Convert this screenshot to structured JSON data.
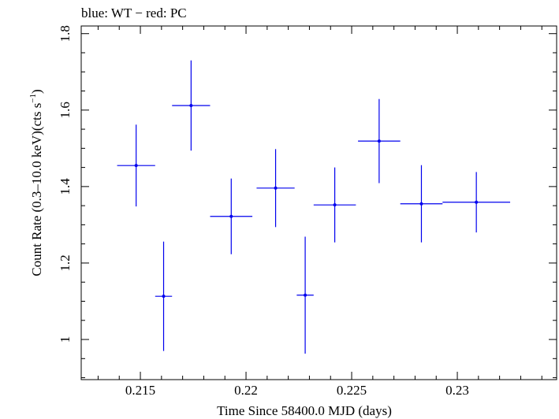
{
  "chart_data": {
    "type": "scatter",
    "title": "blue: WT − red: PC",
    "xlabel": "Time Since 58400.0 MJD (days)",
    "ylabel_main": "Count Rate (0.3–10.0 keV)(cts s",
    "ylabel_sup": "−1",
    "ylabel_close": ")",
    "xlim": [
      0.2122,
      0.2347
    ],
    "ylim": [
      0.895,
      1.82
    ],
    "xticks": [
      {
        "value": 0.215,
        "label": "0.215"
      },
      {
        "value": 0.22,
        "label": "0.22"
      },
      {
        "value": 0.225,
        "label": "0.225"
      },
      {
        "value": 0.23,
        "label": "0.23"
      }
    ],
    "yticks": [
      {
        "value": 1.0,
        "label": "1"
      },
      {
        "value": 1.2,
        "label": "1.2"
      },
      {
        "value": 1.4,
        "label": "1.4"
      },
      {
        "value": 1.6,
        "label": "1.6"
      },
      {
        "value": 1.8,
        "label": "1.8"
      }
    ],
    "series": [
      {
        "name": "WT",
        "color": "#0000ee",
        "points": [
          {
            "x": 0.2148,
            "xerr": 0.0009,
            "y": 1.455,
            "yerr_lo": 0.107,
            "yerr_hi": 0.107
          },
          {
            "x": 0.2161,
            "xerr": 0.0004,
            "y": 1.113,
            "yerr_lo": 0.143,
            "yerr_hi": 0.143
          },
          {
            "x": 0.2174,
            "xerr": 0.0009,
            "y": 1.612,
            "yerr_lo": 0.118,
            "yerr_hi": 0.118
          },
          {
            "x": 0.2193,
            "xerr": 0.001,
            "y": 1.322,
            "yerr_lo": 0.099,
            "yerr_hi": 0.099
          },
          {
            "x": 0.2214,
            "xerr": 0.0009,
            "y": 1.396,
            "yerr_lo": 0.102,
            "yerr_hi": 0.102
          },
          {
            "x": 0.2228,
            "xerr": 0.0004,
            "y": 1.116,
            "yerr_lo": 0.153,
            "yerr_hi": 0.153
          },
          {
            "x": 0.2242,
            "xerr": 0.001,
            "y": 1.352,
            "yerr_lo": 0.098,
            "yerr_hi": 0.098
          },
          {
            "x": 0.2263,
            "xerr": 0.001,
            "y": 1.519,
            "yerr_lo": 0.11,
            "yerr_hi": 0.11
          },
          {
            "x": 0.2283,
            "xerr": 0.001,
            "y": 1.355,
            "yerr_lo": 0.101,
            "yerr_hi": 0.101
          },
          {
            "x": 0.2309,
            "xerr": 0.0016,
            "y": 1.359,
            "yerr_lo": 0.079,
            "yerr_hi": 0.079
          }
        ]
      }
    ]
  }
}
